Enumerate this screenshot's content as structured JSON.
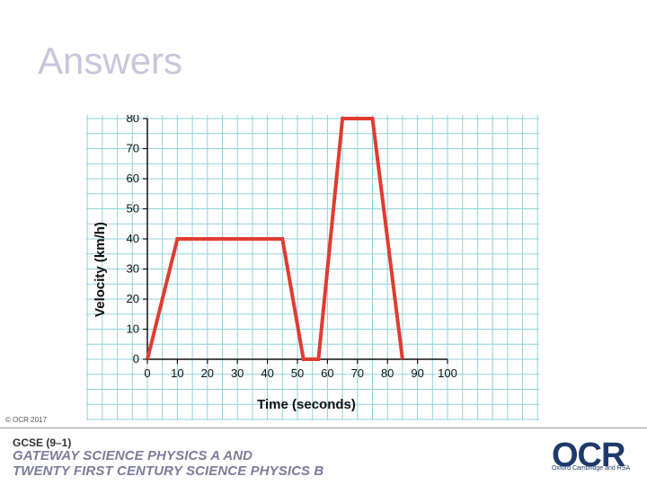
{
  "slide": {
    "title": "Answers",
    "copyright": "© OCR 2017"
  },
  "footer": {
    "gcse": "GCSE (9–1)",
    "line1": "GATEWAY SCIENCE PHYSICS A AND",
    "line2": "TWENTY FIRST CENTURY SCIENCE PHYSICS B",
    "logo_text": "OCR",
    "logo_tagline": "Oxford Cambridge and RSA"
  },
  "chart_data": {
    "type": "line",
    "title": "",
    "xlabel": "Time (seconds)",
    "ylabel": "Velocity (km/h)",
    "xlim": [
      0,
      100
    ],
    "ylim": [
      0,
      80
    ],
    "xticks": [
      0,
      10,
      20,
      30,
      40,
      50,
      60,
      70,
      80,
      90,
      100
    ],
    "yticks": [
      0,
      10,
      20,
      30,
      40,
      50,
      60,
      70,
      80
    ],
    "grid": true,
    "series": [
      {
        "x": [
          0,
          10,
          45,
          52,
          57,
          65,
          75,
          85
        ],
        "y": [
          0,
          40,
          40,
          0,
          0,
          80,
          80,
          0
        ]
      }
    ],
    "colors": {
      "line": "#e03c31",
      "grid": "#8fd3dd",
      "axis": "#111111",
      "background": "#ffffff"
    }
  }
}
